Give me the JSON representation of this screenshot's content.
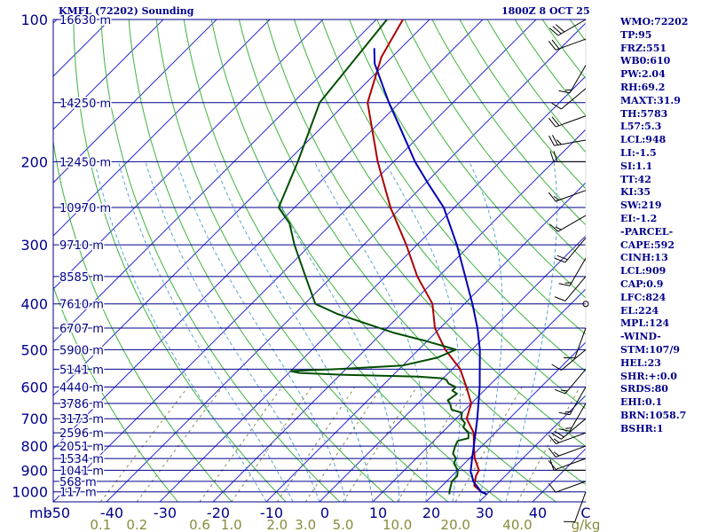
{
  "header": {
    "station": "KMFL (72202) Sounding",
    "time": "1800Z  8 OCT 25"
  },
  "indices": [
    "WMO:72202",
    "TP:95",
    "FRZ:551",
    "WB0:610",
    "PW:2.04",
    "RH:69.2",
    "MAXT:31.9",
    "TH:5783",
    "L57:5.3",
    "LCL:948",
    "LI:-1.5",
    "SI:1.1",
    "TT:42",
    "KI:35",
    "SW:219",
    "EI:-1.2",
    "-PARCEL-",
    "CAPE:592",
    "CINH:13",
    "LCL:909",
    "CAP:0.9",
    "LFC:824",
    "EL:224",
    "MPL:124",
    "-WIND-",
    "STM:107/9",
    "HEL:23",
    "SHR:+:0.0",
    "SRDS:80",
    "EHI:0.1",
    "BRN:1058.7",
    "BSHR:1"
  ],
  "colors": {
    "isobar": "#00008b",
    "isotherm": "#2b2bd6",
    "dry_adiabat": "#3cb43c",
    "moist_adiabat": "#5aa5d2",
    "mixing_ratio": "#8a8a50",
    "temperature": "#b00000",
    "dewpoint": "#004d00",
    "parcel": "#0000b4",
    "axis_text": "#00008b",
    "mixing_text": "#8a8a3c",
    "wind": "#000000"
  },
  "chart_data": {
    "type": "line",
    "title": "KMFL (72202) Sounding",
    "subtitle": "1800Z  8 OCT 25",
    "pressure_axis": {
      "label": "mb",
      "ticks": [
        100,
        200,
        300,
        400,
        500,
        600,
        700,
        800,
        900,
        1000
      ],
      "tick_labels": [
        "100",
        "200",
        "300",
        "400",
        "500",
        "600",
        "700",
        "800",
        "900",
        "1000"
      ]
    },
    "temperature_axis": {
      "ticks": [
        -50,
        -40,
        -30,
        -20,
        -10,
        0,
        10,
        20,
        30,
        40
      ],
      "tick_labels": [
        "-50",
        "-40",
        "-30",
        "-20",
        "-10",
        "0",
        "10",
        "20",
        "30",
        "40"
      ],
      "unit": "C"
    },
    "mixing_ratio_axis": {
      "unit": "g/kg",
      "values": [
        0.1,
        0.2,
        0.6,
        1.0,
        2.0,
        3.0,
        5.0,
        10.0,
        20.0,
        40.0
      ],
      "labels": [
        "0.1",
        "0.2",
        "0.6",
        "1.0",
        "2.0",
        "3.0",
        "5.0",
        "10.0",
        "20.0",
        "40.0"
      ]
    },
    "heights": [
      {
        "p": 100,
        "label": "16630 m"
      },
      {
        "p": 150,
        "label": "14250 m"
      },
      {
        "p": 200,
        "label": "12450 m"
      },
      {
        "p": 250,
        "label": "10970 m"
      },
      {
        "p": 300,
        "label": "9710 m"
      },
      {
        "p": 350,
        "label": "8585 m"
      },
      {
        "p": 400,
        "label": "7610 m"
      },
      {
        "p": 450,
        "label": "6707 m"
      },
      {
        "p": 500,
        "label": "5900 m"
      },
      {
        "p": 550,
        "label": "5141 m"
      },
      {
        "p": 600,
        "label": "4440 m"
      },
      {
        "p": 650,
        "label": "3786 m"
      },
      {
        "p": 700,
        "label": "3173 m"
      },
      {
        "p": 750,
        "label": "2596 m"
      },
      {
        "p": 800,
        "label": "2051 m"
      },
      {
        "p": 850,
        "label": "1534 m"
      },
      {
        "p": 900,
        "label": "1041 m"
      },
      {
        "p": 950,
        "label": "568 m"
      },
      {
        "p": 1000,
        "label": "117 m"
      }
    ],
    "series": [
      {
        "key": "temperature",
        "values": [
          [
            1012,
            30
          ],
          [
            1000,
            28.5
          ],
          [
            970,
            26
          ],
          [
            925,
            24.5
          ],
          [
            900,
            24
          ],
          [
            850,
            21
          ],
          [
            800,
            18.5
          ],
          [
            750,
            16
          ],
          [
            700,
            12
          ],
          [
            650,
            10
          ],
          [
            600,
            6
          ],
          [
            550,
            1.5
          ],
          [
            500,
            -5
          ],
          [
            450,
            -11
          ],
          [
            400,
            -16
          ],
          [
            350,
            -24
          ],
          [
            300,
            -32
          ],
          [
            250,
            -42
          ],
          [
            200,
            -53
          ],
          [
            150,
            -66
          ],
          [
            120,
            -72
          ],
          [
            100,
            -75
          ]
        ]
      },
      {
        "key": "dewpoint",
        "values": [
          [
            1012,
            23
          ],
          [
            1000,
            22.5
          ],
          [
            950,
            21
          ],
          [
            925,
            21
          ],
          [
            900,
            20
          ],
          [
            870,
            18
          ],
          [
            850,
            17.5
          ],
          [
            830,
            16
          ],
          [
            800,
            15
          ],
          [
            780,
            14.5
          ],
          [
            770,
            16
          ],
          [
            750,
            15
          ],
          [
            730,
            13
          ],
          [
            715,
            12.5
          ],
          [
            700,
            11
          ],
          [
            680,
            10
          ],
          [
            670,
            7.5
          ],
          [
            650,
            6
          ],
          [
            640,
            5
          ],
          [
            620,
            5.5
          ],
          [
            610,
            4
          ],
          [
            600,
            4
          ],
          [
            590,
            2
          ],
          [
            580,
            1
          ],
          [
            575,
            0
          ],
          [
            570,
            -5
          ],
          [
            565,
            -20
          ],
          [
            560,
            -28
          ],
          [
            555,
            -30
          ],
          [
            550,
            -22
          ],
          [
            540,
            -10
          ],
          [
            520,
            -5
          ],
          [
            500,
            -3
          ],
          [
            480,
            -10
          ],
          [
            460,
            -18
          ],
          [
            420,
            -32
          ],
          [
            400,
            -38
          ],
          [
            350,
            -45
          ],
          [
            300,
            -53
          ],
          [
            270,
            -58
          ],
          [
            250,
            -63
          ],
          [
            200,
            -68
          ],
          [
            150,
            -75
          ],
          [
            100,
            -78
          ]
        ]
      },
      {
        "key": "parcel",
        "values": [
          [
            1012,
            30
          ],
          [
            1000,
            28.5
          ],
          [
            950,
            25
          ],
          [
            920,
            23.5
          ],
          [
            909,
            22.8
          ],
          [
            850,
            20.5
          ],
          [
            800,
            18.5
          ],
          [
            700,
            14
          ],
          [
            600,
            8.5
          ],
          [
            500,
            1.5
          ],
          [
            450,
            -3
          ],
          [
            400,
            -8.5
          ],
          [
            350,
            -15
          ],
          [
            300,
            -22.5
          ],
          [
            250,
            -32
          ],
          [
            224,
            -39
          ],
          [
            200,
            -46
          ],
          [
            170,
            -55
          ],
          [
            150,
            -62
          ],
          [
            124,
            -72
          ],
          [
            115,
            -75
          ]
        ]
      }
    ],
    "wind_barbs": [
      {
        "p": 100,
        "dir": 240,
        "spd": 30
      },
      {
        "p": 110,
        "dir": 250,
        "spd": 20
      },
      {
        "p": 125,
        "dir": 210,
        "spd": 15
      },
      {
        "p": 140,
        "dir": 230,
        "spd": 10
      },
      {
        "p": 160,
        "dir": 250,
        "spd": 20
      },
      {
        "p": 180,
        "dir": 260,
        "spd": 25
      },
      {
        "p": 200,
        "dir": 270,
        "spd": 20
      },
      {
        "p": 230,
        "dir": 250,
        "spd": 15
      },
      {
        "p": 260,
        "dir": 240,
        "spd": 15
      },
      {
        "p": 290,
        "dir": 220,
        "spd": 20
      },
      {
        "p": 320,
        "dir": 210,
        "spd": 15
      },
      {
        "p": 350,
        "dir": 220,
        "spd": 10
      },
      {
        "p": 400,
        "dir": 0,
        "spd": 0
      },
      {
        "p": 450,
        "dir": 200,
        "spd": 10
      },
      {
        "p": 500,
        "dir": 230,
        "spd": 10
      },
      {
        "p": 550,
        "dir": 220,
        "spd": 15
      },
      {
        "p": 600,
        "dir": 210,
        "spd": 15
      },
      {
        "p": 650,
        "dir": 210,
        "spd": 15
      },
      {
        "p": 700,
        "dir": 230,
        "spd": 20
      },
      {
        "p": 750,
        "dir": 250,
        "spd": 15
      },
      {
        "p": 800,
        "dir": 250,
        "spd": 15
      },
      {
        "p": 850,
        "dir": 250,
        "spd": 10
      },
      {
        "p": 900,
        "dir": 270,
        "spd": 10
      },
      {
        "p": 950,
        "dir": 250,
        "spd": 10
      },
      {
        "p": 1000,
        "dir": 200,
        "spd": 10
      }
    ]
  }
}
